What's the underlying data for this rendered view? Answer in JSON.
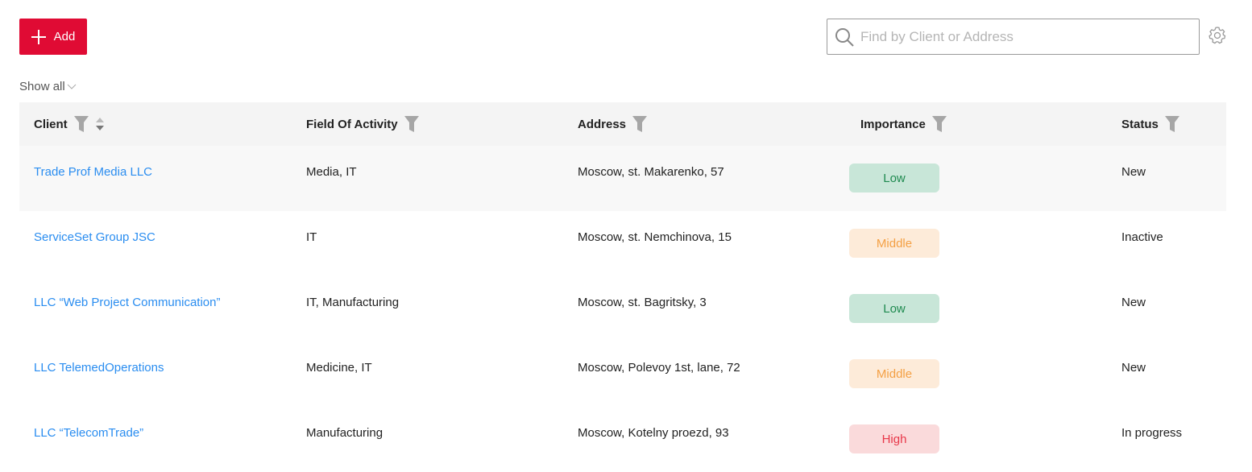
{
  "toolbar": {
    "add_label": "Add",
    "search_placeholder": "Find by Client or Address",
    "show_all_label": "Show all"
  },
  "table": {
    "columns": [
      "Client",
      "Field Of Activity",
      "Address",
      "Importance",
      "Status"
    ],
    "rows": [
      {
        "client": "Trade Prof Media LLC",
        "field": "Media, IT",
        "address": "Moscow, st. Makarenko, 57",
        "importance": "Low",
        "status": "New"
      },
      {
        "client": "ServiceSet Group JSC",
        "field": "IT",
        "address": "Moscow, st. Nemchinova, 15",
        "importance": "Middle",
        "status": "Inactive"
      },
      {
        "client": "LLC “Web Project Communication”",
        "field": "IT, Manufacturing",
        "address": "Moscow, st. Bagritsky, 3",
        "importance": "Low",
        "status": "New"
      },
      {
        "client": "LLC TelemedOperations",
        "field": "Medicine, IT",
        "address": "Moscow, Polevoy 1st, lane, 72",
        "importance": "Middle",
        "status": "New"
      },
      {
        "client": "LLC “TelecomTrade”",
        "field": "Manufacturing",
        "address": "Moscow, Kotelny proezd, 93",
        "importance": "High",
        "status": "In progress"
      }
    ]
  },
  "colors": {
    "accent": "#e00b34",
    "link": "#2a8df0",
    "importance": {
      "Low": {
        "bg": "#c8e6d8",
        "fg": "#1e8a4f"
      },
      "Middle": {
        "bg": "#fdebd9",
        "fg": "#f4a044"
      },
      "High": {
        "bg": "#fadadb",
        "fg": "#e8384a"
      }
    }
  }
}
